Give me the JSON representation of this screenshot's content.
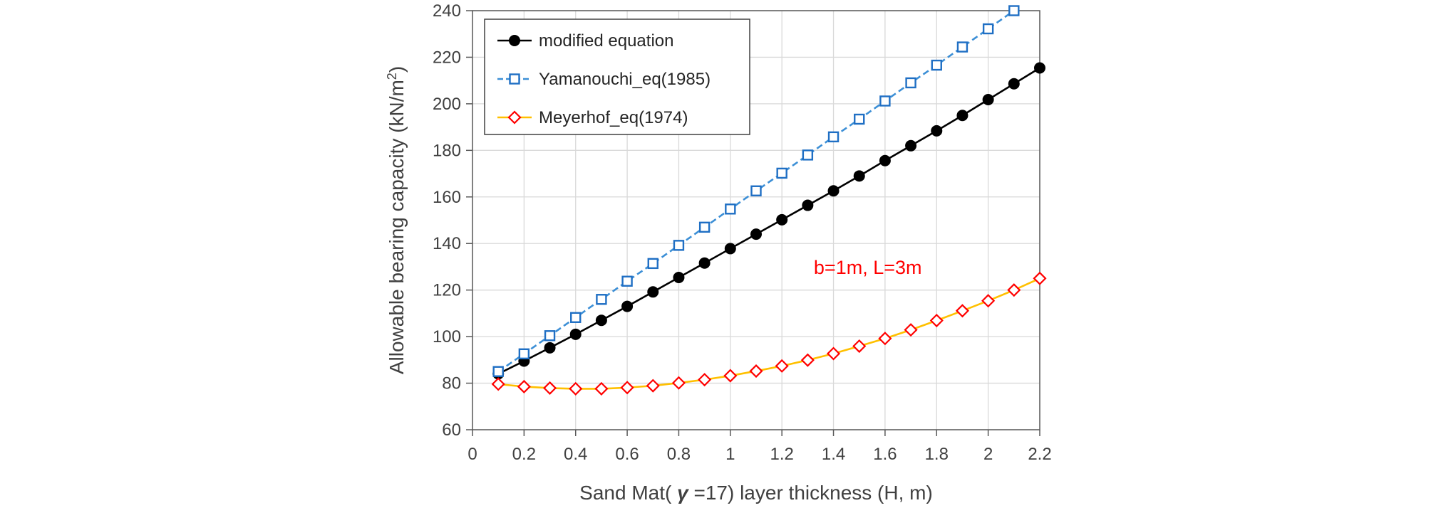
{
  "chart_data": {
    "type": "line",
    "xlabel_parts": [
      "Sand Mat( ",
      "γ",
      " =17) layer thickness (H, m)"
    ],
    "ylabel_main": "Allowable bearing capacity (kN/m",
    "ylabel_sup": "2",
    "ylabel_close": ")",
    "xlim": [
      0,
      2.2
    ],
    "ylim": [
      60,
      240
    ],
    "x_ticks": [
      "0",
      "0.2",
      "0.4",
      "0.6",
      "0.8",
      "1",
      "1.2",
      "1.4",
      "1.6",
      "1.8",
      "2",
      "2.2"
    ],
    "y_ticks": [
      "60",
      "80",
      "100",
      "120",
      "140",
      "160",
      "180",
      "200",
      "220",
      "240"
    ],
    "grid": true,
    "legend_position": "top-left",
    "annotation": {
      "text": "b=1m, L=3m",
      "x": 1.6,
      "y": 130,
      "color": "#ff0000"
    },
    "series": [
      {
        "name": "modified equation",
        "marker": "filled-circle",
        "line_color": "#000000",
        "marker_color": "#000000",
        "dashed": false,
        "x": [
          0.1,
          0.2,
          0.3,
          0.4,
          0.5,
          0.6,
          0.7,
          0.8,
          0.9,
          1.0,
          1.1,
          1.2,
          1.3,
          1.4,
          1.5,
          1.6,
          1.7,
          1.8,
          1.9,
          2.0,
          2.1,
          2.2
        ],
        "y": [
          84,
          89.5,
          95.2,
          101,
          107,
          113,
          119.2,
          125.4,
          131.6,
          137.8,
          144,
          150.2,
          156.4,
          162.6,
          169,
          175.6,
          182,
          188.4,
          195,
          201.8,
          208.6,
          215.4
        ]
      },
      {
        "name": "Yamanouchi_eq(1985)",
        "marker": "open-square",
        "line_color": "#3c8fd6",
        "marker_color": "#1f6fc4",
        "dashed": true,
        "x": [
          0.1,
          0.2,
          0.3,
          0.4,
          0.5,
          0.6,
          0.7,
          0.8,
          0.9,
          1.0,
          1.1,
          1.2,
          1.3,
          1.4,
          1.5,
          1.6,
          1.7,
          1.8,
          1.9,
          2.0,
          2.1
        ],
        "y": [
          85,
          92.6,
          100.4,
          108.2,
          116,
          123.8,
          131.4,
          139.2,
          147,
          154.8,
          162.6,
          170.2,
          178,
          185.8,
          193.4,
          201.2,
          209,
          216.6,
          224.4,
          232.2,
          240
        ]
      },
      {
        "name": "Meyerhof_eq(1974)",
        "marker": "open-diamond",
        "line_color": "#ffc000",
        "marker_color": "#ff0000",
        "dashed": false,
        "x": [
          0.1,
          0.2,
          0.3,
          0.4,
          0.5,
          0.6,
          0.7,
          0.8,
          0.9,
          1.0,
          1.1,
          1.2,
          1.3,
          1.4,
          1.5,
          1.6,
          1.7,
          1.8,
          1.9,
          2.0,
          2.1,
          2.2
        ],
        "y": [
          79.6,
          78.5,
          77.9,
          77.6,
          77.6,
          78.1,
          78.9,
          80.1,
          81.5,
          83.2,
          85.2,
          87.4,
          89.9,
          92.7,
          95.9,
          99.2,
          102.9,
          106.9,
          111.1,
          115.4,
          120,
          125
        ]
      }
    ]
  }
}
